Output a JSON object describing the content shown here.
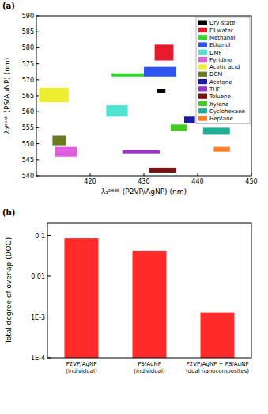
{
  "chart_data": [
    {
      "type": "rectangle",
      "title": "(a)",
      "x_label": "λ₁ᵖᵉᵃᵏ (P2VP/AgNP) (nm)",
      "y_label": "λ₂ᵖᵉᵃᵏ (PS/AuNP) (nm)",
      "xlim": [
        410,
        450
      ],
      "xticks": [
        420,
        430,
        440,
        450
      ],
      "ylim": [
        540,
        590
      ],
      "yticks": [
        540,
        545,
        550,
        555,
        560,
        565,
        570,
        575,
        580,
        585,
        590
      ],
      "legend": "upper right",
      "series": [
        {
          "name": "Dry state",
          "color": "#000000",
          "x": [
            432.5,
            434
          ],
          "values": [
            566,
            567
          ]
        },
        {
          "name": "DI water",
          "color": "#e8192c",
          "x": [
            432,
            435.5
          ],
          "values": [
            576,
            581
          ]
        },
        {
          "name": "Methanol",
          "color": "#2ed62e",
          "x": [
            424,
            430
          ],
          "values": [
            571,
            572
          ]
        },
        {
          "name": "Ethanol",
          "color": "#2f55f0",
          "x": [
            430,
            436
          ],
          "values": [
            571,
            574
          ]
        },
        {
          "name": "DMF",
          "color": "#4fe3d2",
          "x": [
            423,
            427
          ],
          "values": [
            558.5,
            562
          ]
        },
        {
          "name": "Pyridine",
          "color": "#e05ee0",
          "x": [
            413.5,
            417.5
          ],
          "values": [
            546,
            549
          ]
        },
        {
          "name": "Acetic acid",
          "color": "#eeee30",
          "x": [
            410.5,
            416
          ],
          "values": [
            563,
            567.5
          ]
        },
        {
          "name": "DCM",
          "color": "#6b7a1f",
          "x": [
            413,
            415.5
          ],
          "values": [
            549.5,
            552.5
          ]
        },
        {
          "name": "Acetone",
          "color": "#1c1ca8",
          "x": [
            437.5,
            439.5
          ],
          "values": [
            556.5,
            558.5
          ]
        },
        {
          "name": "THF",
          "color": "#9a33d0",
          "x": [
            426,
            433
          ],
          "values": [
            547,
            548
          ]
        },
        {
          "name": "Toluene",
          "color": "#7a1212",
          "x": [
            431,
            436
          ],
          "values": [
            541,
            542.5
          ]
        },
        {
          "name": "Xylene",
          "color": "#44cc22",
          "x": [
            435,
            438
          ],
          "values": [
            554,
            556
          ]
        },
        {
          "name": "Cyclohexane",
          "color": "#20b09a",
          "x": [
            441,
            446
          ],
          "values": [
            553,
            555
          ]
        },
        {
          "name": "Heptane",
          "color": "#ff7f27",
          "x": [
            443,
            446
          ],
          "values": [
            547.5,
            549
          ]
        }
      ]
    },
    {
      "type": "bar",
      "title": "(b)",
      "y_label": "Total degree of overlap (DOO)",
      "categories": [
        "P2VP/AgNP\n(individual)",
        "PS/AuNP\n(individual)",
        "P2VP/AgNP + PS/AuNP\n(dual nanocomposites)"
      ],
      "values": [
        0.085,
        0.042,
        0.0013
      ],
      "color": "#ff2a2a",
      "log": "y",
      "ylim": [
        0.0001,
        0.2
      ],
      "yticks": [
        {
          "value": 0.0001,
          "label": "1E-4"
        },
        {
          "value": 0.001,
          "label": "1E-3"
        },
        0.01,
        0.1
      ]
    }
  ]
}
